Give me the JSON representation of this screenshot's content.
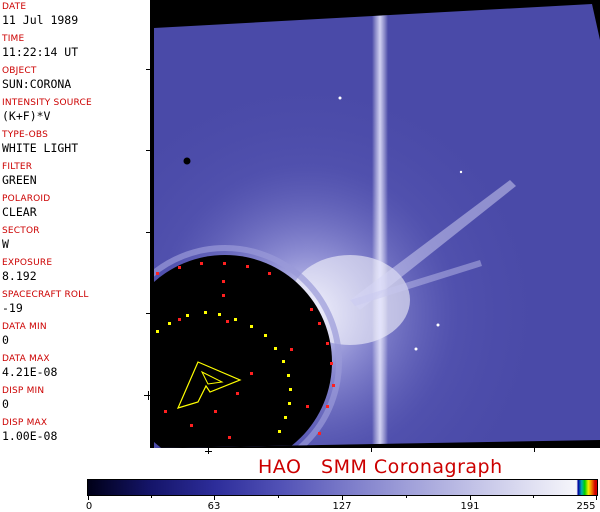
{
  "metadata": {
    "date": {
      "label": "DATE",
      "value": "11 Jul 1989"
    },
    "time": {
      "label": "TIME",
      "value": "11:22:14 UT"
    },
    "object": {
      "label": "OBJECT",
      "value": "SUN:CORONA"
    },
    "intensity": {
      "label": "INTENSITY SOURCE",
      "value": "(K+F)*V"
    },
    "type_obs": {
      "label": "TYPE-OBS",
      "value": "WHITE LIGHT"
    },
    "filter": {
      "label": "FILTER",
      "value": "GREEN"
    },
    "polaroid": {
      "label": "POLAROID",
      "value": "CLEAR"
    },
    "sector": {
      "label": "SECTOR",
      "value": "W"
    },
    "exposure": {
      "label": "EXPOSURE",
      "value": "8.192"
    },
    "roll": {
      "label": "SPACECRAFT ROLL",
      "value": "-19"
    },
    "data_min": {
      "label": "DATA MIN",
      "value": "0"
    },
    "data_max": {
      "label": "DATA MAX",
      "value": "4.21E-08"
    },
    "disp_min": {
      "label": "DISP MIN",
      "value": "0"
    },
    "disp_max": {
      "label": "DISP MAX",
      "value": "1.00E-08"
    }
  },
  "title": "HAO   SMM Coronagraph",
  "colorbar": {
    "ticks": [
      "0",
      "63",
      "127",
      "191",
      "255"
    ]
  },
  "colors": {
    "label_red": "#cc0000",
    "corona_blue": "#4a4aa8",
    "occulter": "#000000"
  }
}
